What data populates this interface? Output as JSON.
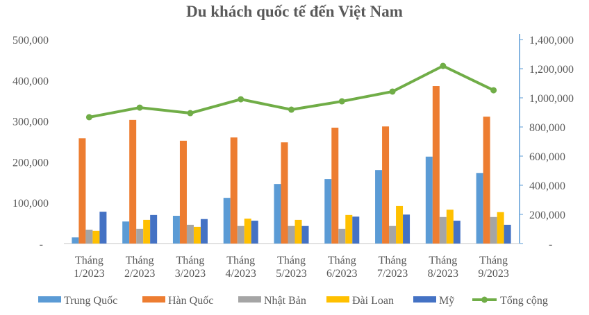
{
  "chart_data": {
    "type": "bar",
    "title": "Du khách quốc tế đến Việt Nam",
    "categories": [
      [
        "Tháng",
        "1/2023"
      ],
      [
        "Tháng",
        "2/2023"
      ],
      [
        "Tháng",
        "3/2023"
      ],
      [
        "Tháng",
        "4/2023"
      ],
      [
        "Tháng",
        "5/2023"
      ],
      [
        "Tháng",
        "6/2023"
      ],
      [
        "Tháng",
        "7/2023"
      ],
      [
        "Tháng",
        "8/2023"
      ],
      [
        "Tháng",
        "9/2023"
      ]
    ],
    "series": [
      {
        "name": "Trung Quốc",
        "type": "bar",
        "axis": "left",
        "color": "#5B9BD5",
        "values": [
          15000,
          54000,
          68000,
          112000,
          146000,
          158000,
          180000,
          213000,
          173000
        ]
      },
      {
        "name": "Hàn Quốc",
        "type": "bar",
        "axis": "left",
        "color": "#ED7D31",
        "values": [
          258000,
          303000,
          252000,
          260000,
          248000,
          284000,
          287000,
          386000,
          311000
        ]
      },
      {
        "name": "Nhật Bản",
        "type": "bar",
        "axis": "left",
        "color": "#A5A5A5",
        "values": [
          34000,
          36000,
          46000,
          43000,
          43000,
          36000,
          43000,
          65000,
          65000
        ]
      },
      {
        "name": "Đài Loan",
        "type": "bar",
        "axis": "left",
        "color": "#FFC000",
        "values": [
          31000,
          58000,
          41000,
          61000,
          58000,
          70000,
          92000,
          83000,
          77000
        ]
      },
      {
        "name": "Mỹ",
        "type": "bar",
        "axis": "left",
        "color": "#4472C4",
        "values": [
          78000,
          70000,
          60000,
          56000,
          43000,
          66000,
          71000,
          56000,
          46000
        ]
      },
      {
        "name": "Tổng cộng",
        "type": "line",
        "axis": "right",
        "color": "#70AD47",
        "values": [
          867000,
          933000,
          895000,
          990000,
          919000,
          976000,
          1043000,
          1219000,
          1052000
        ]
      }
    ],
    "left_axis": {
      "ylim": [
        0,
        500000
      ],
      "ticks": [
        "-",
        "100,000",
        "200,000",
        "300,000",
        "400,000",
        "500,000"
      ]
    },
    "right_axis": {
      "ylim": [
        0,
        1400000
      ],
      "ticks": [
        "-",
        "200,000",
        "400,000",
        "600,000",
        "800,000",
        "1,000,000",
        "1,200,000",
        "1,400,000"
      ]
    },
    "legend": "bottom",
    "grid": false
  }
}
